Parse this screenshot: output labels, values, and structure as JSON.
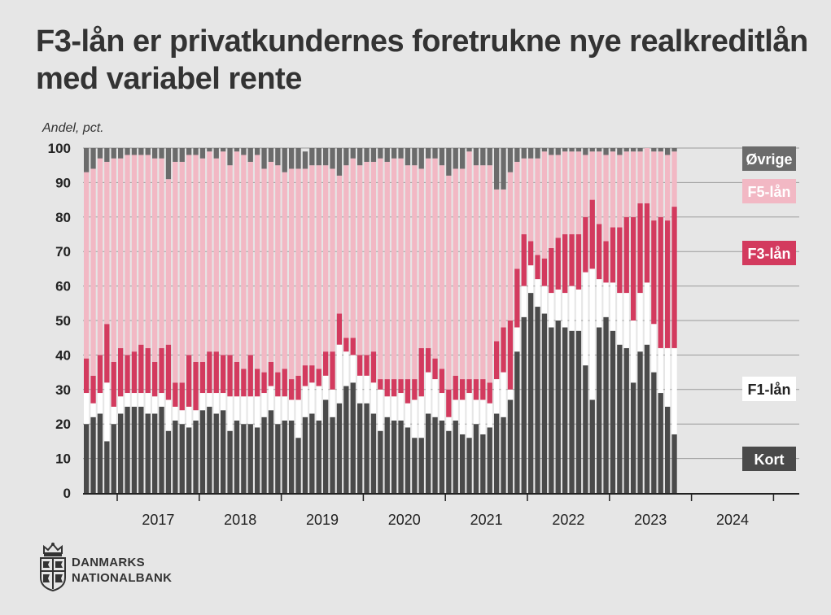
{
  "title": "F3-lån er privatkundernes foretrukne nye realkreditlån med variabel rente",
  "logo": {
    "line1": "DANMARKS",
    "line2": "NATIONALBANK"
  },
  "colors": {
    "kort": "#4a4a4a",
    "f1": "#ffffff",
    "f3": "#d33a5e",
    "f5": "#f2b8c4",
    "ovrige": "#6b6b6b"
  },
  "chart_data": {
    "type": "bar",
    "stacked": true,
    "ylabel": "Andel, pct.",
    "ylim": [
      0,
      100
    ],
    "yticks": [
      0,
      10,
      20,
      30,
      40,
      50,
      60,
      70,
      80,
      90,
      100
    ],
    "xticks": [
      "2017",
      "2018",
      "2019",
      "2020",
      "2021",
      "2022",
      "2023",
      "2024"
    ],
    "start_month": "2016-08",
    "series": [
      {
        "name": "Kort",
        "values": [
          20,
          22,
          23,
          15,
          20,
          23,
          25,
          25,
          25,
          23,
          23,
          25,
          18,
          21,
          20,
          19,
          21,
          24,
          25,
          23,
          24,
          18,
          21,
          20,
          20,
          19,
          22,
          24,
          20,
          21,
          21,
          16,
          22,
          23,
          21,
          27,
          22,
          26,
          31,
          32,
          26,
          26,
          23,
          18,
          22,
          21,
          21,
          19,
          16,
          16,
          23,
          22,
          21,
          18,
          21,
          17,
          16,
          20,
          17,
          19,
          23,
          22,
          27,
          41,
          51,
          58,
          54,
          52,
          48,
          50,
          48,
          47,
          47,
          37,
          27,
          48,
          51,
          47,
          43,
          42,
          32,
          41,
          43,
          35,
          29,
          25,
          17
        ]
      },
      {
        "name": "F1-lån",
        "values": [
          9,
          4,
          6,
          17,
          5,
          5,
          4,
          4,
          4,
          6,
          5,
          4,
          9,
          4,
          4,
          6,
          3,
          5,
          4,
          6,
          5,
          10,
          7,
          8,
          8,
          9,
          7,
          7,
          8,
          7,
          6,
          11,
          9,
          9,
          10,
          7,
          8,
          17,
          10,
          8,
          8,
          8,
          9,
          12,
          6,
          7,
          8,
          7,
          11,
          12,
          12,
          11,
          8,
          4,
          6,
          10,
          13,
          7,
          10,
          7,
          10,
          13,
          3,
          7,
          9,
          8,
          8,
          8,
          10,
          9,
          10,
          13,
          12,
          27,
          38,
          14,
          10,
          14,
          15,
          16,
          18,
          17,
          18,
          14,
          13,
          17,
          25
        ]
      },
      {
        "name": "F3-lån",
        "values": [
          10,
          8,
          11,
          17,
          13,
          14,
          11,
          12,
          14,
          13,
          10,
          13,
          16,
          7,
          8,
          15,
          14,
          9,
          12,
          12,
          11,
          12,
          10,
          8,
          12,
          8,
          6,
          7,
          7,
          8,
          6,
          7,
          6,
          5,
          5,
          7,
          11,
          9,
          4,
          5,
          6,
          6,
          9,
          3,
          5,
          5,
          4,
          7,
          6,
          14,
          7,
          6,
          7,
          8,
          7,
          6,
          4,
          6,
          6,
          6,
          11,
          13,
          20,
          17,
          15,
          7,
          7,
          8,
          13,
          15,
          17,
          15,
          16,
          16,
          20,
          16,
          12,
          16,
          19,
          22,
          30,
          26,
          23,
          30,
          38,
          37,
          41
        ]
      },
      {
        "name": "F5-lån",
        "values": [
          54,
          60,
          57,
          47,
          59,
          55,
          58,
          57,
          55,
          56,
          59,
          55,
          48,
          64,
          64,
          58,
          60,
          59,
          58,
          56,
          59,
          55,
          61,
          62,
          56,
          62,
          59,
          58,
          60,
          57,
          61,
          60,
          57,
          58,
          59,
          54,
          53,
          40,
          50,
          52,
          55,
          56,
          55,
          64,
          63,
          64,
          64,
          62,
          62,
          52,
          55,
          58,
          59,
          62,
          60,
          61,
          66,
          62,
          62,
          63,
          44,
          40,
          43,
          31,
          22,
          24,
          28,
          31,
          27,
          24,
          24,
          24,
          24,
          18,
          14,
          21,
          25,
          22,
          21,
          19,
          19,
          15,
          16,
          20,
          19,
          19,
          16
        ]
      },
      {
        "name": "Øvrige",
        "values": [
          7,
          6,
          3,
          4,
          3,
          3,
          2,
          2,
          2,
          2,
          3,
          3,
          9,
          4,
          4,
          2,
          2,
          3,
          1,
          3,
          1,
          5,
          1,
          2,
          4,
          2,
          6,
          4,
          5,
          7,
          6,
          6,
          5,
          5,
          5,
          5,
          6,
          8,
          5,
          3,
          5,
          4,
          4,
          3,
          4,
          3,
          3,
          5,
          5,
          6,
          3,
          3,
          5,
          8,
          6,
          6,
          1,
          5,
          5,
          5,
          12,
          12,
          7,
          4,
          3,
          3,
          3,
          1,
          2,
          2,
          1,
          1,
          1,
          2,
          1,
          1,
          2,
          1,
          2,
          1,
          1,
          1,
          0,
          1,
          1,
          2,
          1
        ]
      }
    ],
    "end_labels": [
      "Øvrige",
      "F5-lån",
      "F3-lån",
      "F1-lån",
      "Kort"
    ]
  }
}
